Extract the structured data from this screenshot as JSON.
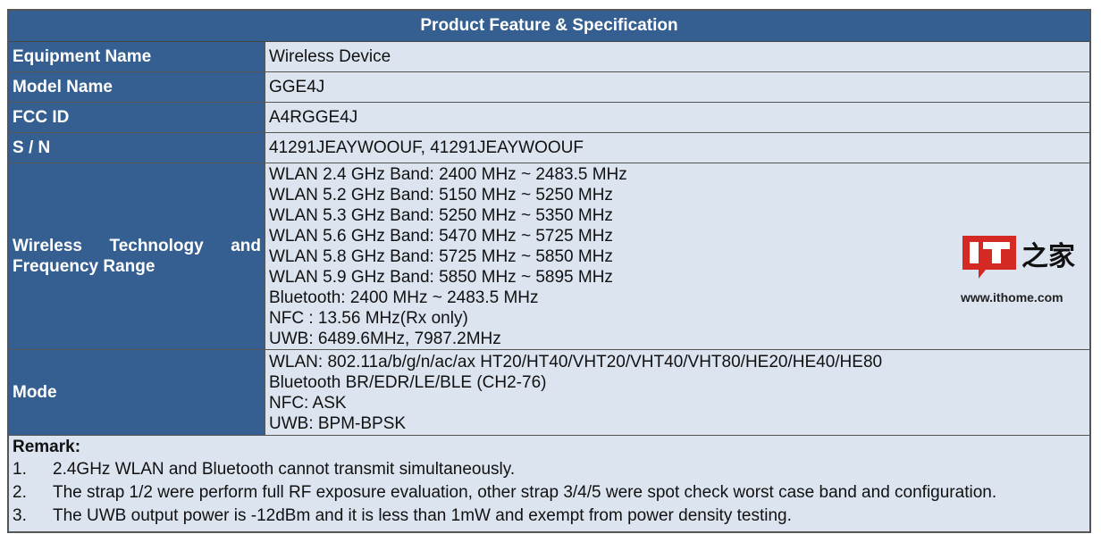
{
  "title": "Product Feature & Specification",
  "rows": [
    {
      "label": "Equipment Name",
      "values": [
        "Wireless Device"
      ]
    },
    {
      "label": "Model Name",
      "values": [
        "GGE4J"
      ]
    },
    {
      "label": "FCC ID",
      "values": [
        "A4RGGE4J"
      ]
    },
    {
      "label": "S / N",
      "values": [
        "41291JEAYWOOUF, 41291JEAYWOOUF"
      ]
    },
    {
      "label": "Wireless Technology and Frequency Range",
      "values": [
        "WLAN 2.4 GHz Band: 2400 MHz ~ 2483.5 MHz",
        "WLAN 5.2 GHz Band: 5150 MHz ~ 5250 MHz",
        "WLAN 5.3 GHz Band: 5250 MHz ~ 5350 MHz",
        "WLAN 5.6 GHz Band: 5470 MHz ~ 5725 MHz",
        "WLAN 5.8 GHz Band: 5725 MHz ~ 5850 MHz",
        "WLAN 5.9 GHz Band: 5850 MHz ~ 5895 MHz",
        "Bluetooth: 2400 MHz ~ 2483.5 MHz",
        "NFC : 13.56 MHz(Rx only)",
        "UWB: 6489.6MHz, 7987.2MHz"
      ]
    },
    {
      "label": "Mode",
      "values": [
        "WLAN: 802.11a/b/g/n/ac/ax HT20/HT40/VHT20/VHT40/VHT80/HE20/HE40/HE80",
        "Bluetooth BR/EDR/LE/BLE (CH2-76)",
        "NFC: ASK",
        "UWB: BPM-BPSK"
      ]
    }
  ],
  "remark": {
    "title": "Remark:",
    "items": [
      {
        "num": "1.",
        "text": "2.4GHz WLAN and Bluetooth cannot transmit simultaneously."
      },
      {
        "num": "2.",
        "text": "The strap 1/2 were perform full RF exposure evaluation, other strap 3/4/5 were spot check worst case band and configuration."
      },
      {
        "num": "3.",
        "text": "The UWB output power is -12dBm and it is less than 1mW and exempt from power density testing."
      }
    ]
  },
  "watermark": {
    "brand": "IT之家",
    "url": "www.ithome.com"
  },
  "colors": {
    "header": "#365f91",
    "cell": "#dce4f0",
    "logo_red": "#d42a23"
  }
}
